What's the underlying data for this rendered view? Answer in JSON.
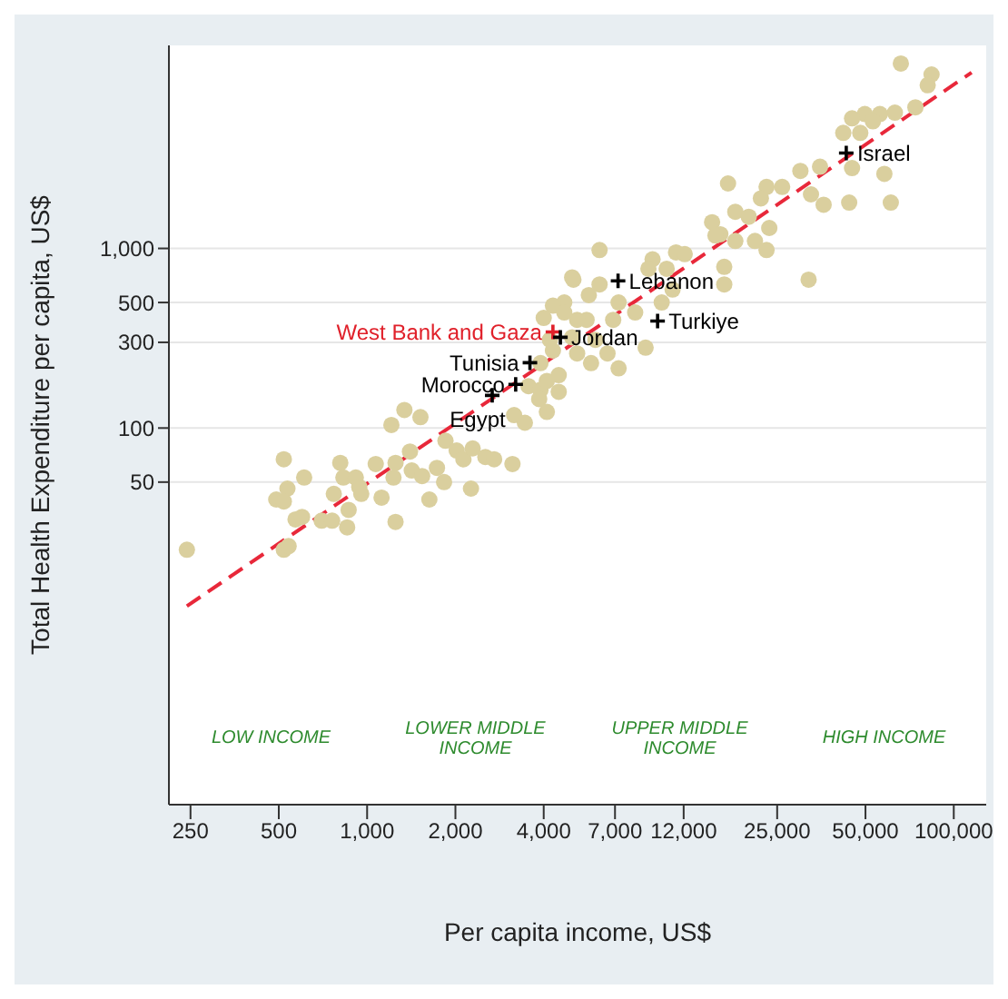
{
  "chart_data": {
    "type": "scatter",
    "xlabel": "Per capita income, US$",
    "ylabel": "Total Health Expenditure per capita, US$",
    "log": "xy",
    "grid": "y",
    "legend": false,
    "xlim": [
      211,
      129000
    ],
    "ylim": [
      0.8,
      13500
    ],
    "xticks": [
      250,
      500,
      {
        "value": 1000,
        "label": "1,000"
      },
      {
        "value": 2000,
        "label": "2,000"
      },
      {
        "value": 4000,
        "label": "4,000"
      },
      {
        "value": 7000,
        "label": "7,000"
      },
      {
        "value": 12000,
        "label": "12,000"
      },
      {
        "value": 25000,
        "label": "25,000"
      },
      {
        "value": 50000,
        "label": "50,000"
      },
      {
        "value": 100000,
        "label": "100,000"
      }
    ],
    "yticks": [
      50,
      100,
      300,
      500,
      {
        "value": 1000,
        "label": "1,000"
      }
    ],
    "annotations": [
      "LOW INCOME",
      "LOWER MIDDLE INCOME",
      "UPPER MIDDLE INCOME",
      "HIGH INCOME"
    ],
    "series": [
      {
        "marker": "circle",
        "color": "#dacf9e",
        "x": [
          66000,
          84000,
          81500,
          74000,
          63000,
          56000,
          49750,
          45000,
          42000,
          48000,
          53000,
          45000,
          58000,
          44000,
          61000,
          36000,
          32600,
          35000,
          30000,
          26000,
          23000,
          22000,
          17000,
          18000,
          15000,
          16000,
          18000,
          20000,
          23500,
          21000,
          23000,
          15400,
          32000,
          16500,
          16500,
          11300,
          12100,
          9400,
          10500,
          9100,
          11000,
          10100,
          6200,
          6200,
          5700,
          5050,
          7200,
          8200,
          6900,
          5600,
          4700,
          4300,
          5200,
          6000,
          6600,
          8900,
          7200,
          5800,
          5200,
          4500,
          3900,
          4200,
          243,
          520,
          610,
          535,
          490,
          520,
          570,
          600,
          520,
          540,
          700,
          760,
          770,
          810,
          830,
          865,
          855,
          915,
          940,
          955,
          1070,
          1120,
          1250,
          1210,
          1340,
          1520,
          1230,
          1250,
          1400,
          1420,
          1540,
          1630,
          1730,
          1830,
          1850,
          2020,
          2130,
          2290,
          2260,
          2530,
          2710,
          3130,
          3170,
          3450,
          3550,
          3900,
          4100,
          3860,
          4100,
          4500,
          5000,
          4000,
          4700,
          5000,
          4300
        ],
        "values": [
          10700,
          9300,
          8100,
          6100,
          5700,
          5600,
          5600,
          5300,
          4400,
          4400,
          5100,
          2800,
          2600,
          1800,
          1800,
          1750,
          2000,
          2850,
          2700,
          2200,
          2200,
          1900,
          2300,
          1600,
          1400,
          1200,
          1100,
          1500,
          1300,
          1100,
          980,
          1180,
          670,
          790,
          630,
          950,
          930,
          870,
          770,
          770,
          590,
          500,
          980,
          630,
          550,
          670,
          500,
          440,
          400,
          400,
          500,
          480,
          400,
          310,
          260,
          280,
          215,
          230,
          260,
          197,
          230,
          310,
          21,
          67,
          53,
          46,
          40,
          39,
          31,
          32,
          21,
          22,
          30.5,
          30.5,
          43,
          64,
          53,
          35,
          28,
          53,
          47,
          43,
          63,
          41,
          30,
          104,
          126,
          115,
          53,
          64,
          74,
          58,
          54,
          40,
          60,
          50,
          85,
          75,
          67,
          77,
          46,
          69,
          67,
          63,
          118,
          107,
          171,
          163,
          183,
          145,
          123,
          159,
          690,
          410,
          440,
          320,
          270
        ]
      },
      {
        "type": "line",
        "line_style": "dashed",
        "color": "#e8283a",
        "x": [
          243,
          115000
        ],
        "values": [
          10.2,
          9540
        ]
      },
      {
        "type": "scatter",
        "marker": "cross",
        "name": "West Bank and Gaza",
        "color": "#e0202a",
        "x": [
          4300
        ],
        "values": [
          343
        ]
      },
      {
        "type": "scatter",
        "marker": "cross",
        "name": "Tunisia",
        "color": "#000000",
        "x": [
          3590
        ],
        "values": [
          231
        ]
      },
      {
        "type": "scatter",
        "marker": "cross",
        "name": "Morocco",
        "color": "#000000",
        "x": [
          3210
        ],
        "values": [
          175
        ]
      },
      {
        "type": "scatter",
        "marker": "cross",
        "name": "Egypt",
        "color": "#000000",
        "x": [
          2670
        ],
        "values": [
          152
        ]
      },
      {
        "type": "scatter",
        "marker": "cross",
        "name": "Jordan",
        "color": "#000000",
        "x": [
          4560
        ],
        "values": [
          320
        ]
      },
      {
        "type": "scatter",
        "marker": "cross",
        "name": "Lebanon",
        "color": "#000000",
        "x": [
          7170
        ],
        "values": [
          660
        ]
      },
      {
        "type": "scatter",
        "marker": "cross",
        "name": "Turkiye",
        "color": "#000000",
        "x": [
          9780
        ],
        "values": [
          394
        ]
      },
      {
        "type": "scatter",
        "marker": "cross",
        "name": "Israel",
        "color": "#000000",
        "x": [
          43000
        ],
        "values": [
          3400
        ]
      }
    ]
  }
}
